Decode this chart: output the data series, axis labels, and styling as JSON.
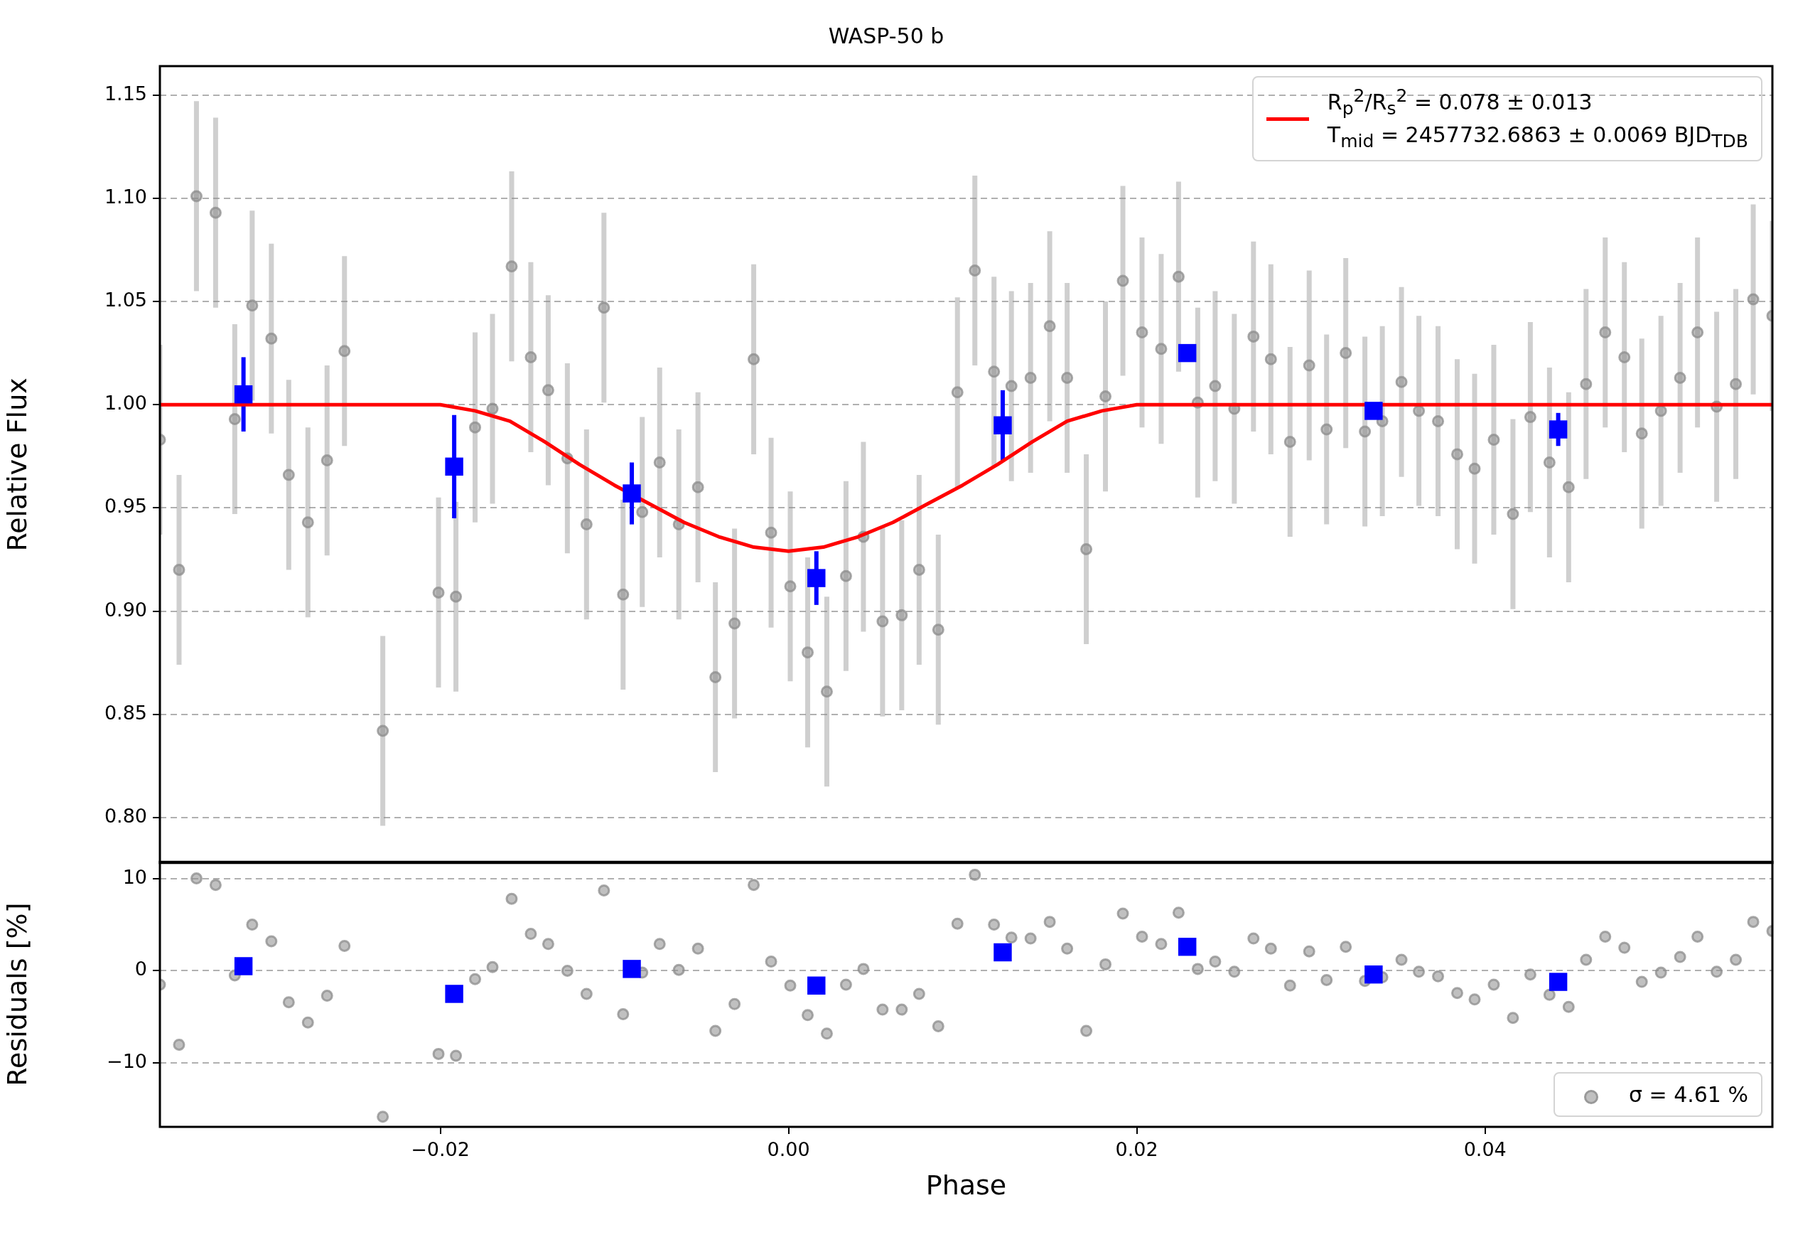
{
  "chart_data": [
    {
      "type": "scatter",
      "title": "WASP-50 b",
      "ylabel": "Relative Flux",
      "xlim": [
        -0.0361,
        0.0565
      ],
      "ylim": [
        0.778,
        1.164
      ],
      "yticks": [
        {
          "value": 0.8,
          "label": "0.80"
        },
        {
          "value": 0.85,
          "label": "0.85"
        },
        {
          "value": 0.9,
          "label": "0.90"
        },
        {
          "value": 0.95,
          "label": "0.95"
        },
        {
          "value": 1.0,
          "label": "1.00"
        },
        {
          "value": 1.05,
          "label": "1.05"
        },
        {
          "value": 1.1,
          "label": "1.10"
        },
        {
          "value": 1.15,
          "label": "1.15"
        }
      ],
      "grid": "y",
      "legend": "top right",
      "tick_labels": "y",
      "series": [
        {
          "marker": "circle",
          "color": "#8c8c8c",
          "x": [
            -0.0361,
            -0.035,
            -0.034,
            -0.0329,
            -0.0318,
            -0.0308,
            -0.0297,
            -0.0287,
            -0.0276,
            -0.0265,
            -0.0255,
            -0.0233,
            -0.0201,
            -0.0191,
            -0.018,
            -0.017,
            -0.0159,
            -0.0148,
            -0.0138,
            -0.0127,
            -0.0116,
            -0.0106,
            -0.0095,
            -0.0084,
            -0.0074,
            -0.0063,
            -0.0052,
            -0.0042,
            -0.0031,
            -0.002,
            -0.001,
            0.0001,
            0.0011,
            0.0022,
            0.0033,
            0.0043,
            0.0054,
            0.0065,
            0.0075,
            0.0086,
            0.0097,
            0.0107,
            0.0118,
            0.0128,
            0.0139,
            0.015,
            0.016,
            0.0171,
            0.0182,
            0.0192,
            0.0203,
            0.0214,
            0.0224,
            0.0235,
            0.0245,
            0.0256,
            0.0267,
            0.0277,
            0.0288,
            0.0299,
            0.0309,
            0.032,
            0.0331,
            0.0341,
            0.0352,
            0.0362,
            0.0373,
            0.0384,
            0.0394,
            0.0405,
            0.0416,
            0.0426,
            0.0437,
            0.0448,
            0.0458,
            0.0469,
            0.048,
            0.049,
            0.0501,
            0.0512,
            0.0522,
            0.0533,
            0.0544,
            0.0554,
            0.0565
          ],
          "values": [
            0.983,
            0.92,
            1.101,
            1.093,
            0.993,
            1.048,
            1.032,
            0.966,
            0.943,
            0.973,
            1.026,
            0.842,
            0.909,
            0.907,
            0.989,
            0.998,
            1.067,
            1.023,
            1.007,
            0.974,
            0.942,
            1.047,
            0.908,
            0.948,
            0.972,
            0.942,
            0.96,
            0.868,
            0.894,
            1.022,
            0.938,
            0.912,
            0.88,
            0.861,
            0.917,
            0.936,
            0.895,
            0.898,
            0.92,
            0.891,
            1.006,
            1.065,
            1.016,
            1.009,
            1.013,
            1.038,
            1.013,
            0.93,
            1.004,
            1.06,
            1.035,
            1.027,
            1.062,
            1.001,
            1.009,
            0.998,
            1.033,
            1.022,
            0.982,
            1.019,
            0.988,
            1.025,
            0.987,
            0.992,
            1.011,
            0.997,
            0.992,
            0.976,
            0.969,
            0.983,
            0.947,
            0.994,
            0.972,
            0.96,
            1.01,
            1.035,
            1.023,
            0.986,
            0.997,
            1.013,
            1.035,
            0.999,
            1.01,
            1.051,
            1.043
          ],
          "errors": [
            0.046,
            0.046,
            0.046,
            0.046,
            0.046,
            0.046,
            0.046,
            0.046,
            0.046,
            0.046,
            0.046,
            0.046,
            0.046,
            0.046,
            0.046,
            0.046,
            0.046,
            0.046,
            0.046,
            0.046,
            0.046,
            0.046,
            0.046,
            0.046,
            0.046,
            0.046,
            0.046,
            0.046,
            0.046,
            0.046,
            0.046,
            0.046,
            0.046,
            0.046,
            0.046,
            0.046,
            0.046,
            0.046,
            0.046,
            0.046,
            0.046,
            0.046,
            0.046,
            0.046,
            0.046,
            0.046,
            0.046,
            0.046,
            0.046,
            0.046,
            0.046,
            0.046,
            0.046,
            0.046,
            0.046,
            0.046,
            0.046,
            0.046,
            0.046,
            0.046,
            0.046,
            0.046,
            0.046,
            0.046,
            0.046,
            0.046,
            0.046,
            0.046,
            0.046,
            0.046,
            0.046,
            0.046,
            0.046,
            0.046,
            0.046,
            0.046,
            0.046,
            0.046,
            0.046,
            0.046,
            0.046,
            0.046,
            0.046,
            0.046,
            0.046
          ]
        },
        {
          "type": "line",
          "marker": "none",
          "line_style": "solid",
          "name": "R$_{p}$$^{2}$/R$_{s}$$^{2}$ = 0.078 ± 0.013\nT$_{mid}$ = 2457732.6863 ± 0.0069 BJD$_{TDB}$",
          "color": "#ff0000",
          "x": [
            -0.0361,
            -0.02,
            -0.018,
            -0.016,
            -0.014,
            -0.012,
            -0.01,
            -0.008,
            -0.006,
            -0.004,
            -0.002,
            0,
            0.002,
            0.004,
            0.006,
            0.008,
            0.01,
            0.012,
            0.014,
            0.016,
            0.018,
            0.02,
            0.0565
          ],
          "values": [
            1,
            1,
            0.997,
            0.992,
            0.982,
            0.971,
            0.961,
            0.952,
            0.943,
            0.936,
            0.931,
            0.929,
            0.931,
            0.936,
            0.943,
            0.952,
            0.961,
            0.971,
            0.982,
            0.992,
            0.997,
            1,
            1
          ]
        },
        {
          "marker": "square",
          "color": "#0000ff",
          "x": [
            -0.0313,
            -0.0192,
            -0.009,
            0.0016,
            0.0123,
            0.0229,
            0.0336,
            0.0442
          ],
          "values": [
            1.005,
            0.97,
            0.957,
            0.916,
            0.99,
            1.025,
            0.997,
            0.988
          ],
          "errors": [
            0.018,
            0.025,
            0.015,
            0.013,
            0.017,
            0.004,
            0.004,
            0.008
          ]
        }
      ]
    },
    {
      "type": "scatter",
      "xlabel": "Phase",
      "ylabel": "Residuals [%]",
      "xlim": [
        -0.0361,
        0.0565
      ],
      "ylim": [
        -16.9,
        11.8
      ],
      "xticks": [
        {
          "value": -0.02,
          "label": "−0.02"
        },
        {
          "value": 0,
          "label": "0.00"
        },
        {
          "value": 0.02,
          "label": "0.02"
        },
        {
          "value": 0.04,
          "label": "0.04"
        }
      ],
      "yticks": [
        {
          "value": -10,
          "label": "−10"
        },
        0,
        10
      ],
      "grid": "y",
      "legend": "bottom right",
      "series": [
        {
          "marker": "circle",
          "name": "σ = 4.61 %",
          "color": "#8c8c8c",
          "x": [
            -0.0361,
            -0.035,
            -0.034,
            -0.0329,
            -0.0318,
            -0.0308,
            -0.0297,
            -0.0287,
            -0.0276,
            -0.0265,
            -0.0255,
            -0.0233,
            -0.0201,
            -0.0191,
            -0.018,
            -0.017,
            -0.0159,
            -0.0148,
            -0.0138,
            -0.0127,
            -0.0116,
            -0.0106,
            -0.0095,
            -0.0084,
            -0.0074,
            -0.0063,
            -0.0052,
            -0.0042,
            -0.0031,
            -0.002,
            -0.001,
            0.0001,
            0.0011,
            0.0022,
            0.0033,
            0.0043,
            0.0054,
            0.0065,
            0.0075,
            0.0086,
            0.0097,
            0.0107,
            0.0118,
            0.0128,
            0.0139,
            0.015,
            0.016,
            0.0171,
            0.0182,
            0.0192,
            0.0203,
            0.0214,
            0.0224,
            0.0235,
            0.0245,
            0.0256,
            0.0267,
            0.0277,
            0.0288,
            0.0299,
            0.0309,
            0.032,
            0.0331,
            0.0341,
            0.0352,
            0.0362,
            0.0373,
            0.0384,
            0.0394,
            0.0405,
            0.0416,
            0.0426,
            0.0437,
            0.0448,
            0.0458,
            0.0469,
            0.048,
            0.049,
            0.0501,
            0.0512,
            0.0522,
            0.0533,
            0.0544,
            0.0554,
            0.0565
          ],
          "values": [
            -1.5,
            -8,
            10,
            9.3,
            -0.5,
            5,
            3.2,
            -3.4,
            -5.6,
            -2.7,
            2.7,
            -15.8,
            -9,
            -9.2,
            -0.9,
            0.4,
            7.8,
            4,
            2.9,
            0,
            -2.5,
            8.7,
            -4.7,
            -0.2,
            2.9,
            0.1,
            2.4,
            -6.5,
            -3.6,
            9.3,
            1,
            -1.6,
            -4.8,
            -6.8,
            -1.5,
            0.2,
            -4.2,
            -4.2,
            -2.5,
            -6,
            5.1,
            10.4,
            5,
            3.6,
            3.5,
            5.3,
            2.4,
            -6.5,
            0.7,
            6.2,
            3.7,
            2.9,
            6.3,
            0.2,
            1,
            -0.1,
            3.5,
            2.4,
            -1.6,
            2.1,
            -1,
            2.6,
            -1.1,
            -0.7,
            1.2,
            -0.1,
            -0.6,
            -2.4,
            -3.1,
            -1.5,
            -5.1,
            -0.4,
            -2.6,
            -3.9,
            1.2,
            3.7,
            2.5,
            -1.2,
            -0.2,
            1.5,
            3.7,
            -0.1,
            1.2,
            5.3,
            4.3
          ]
        },
        {
          "marker": "square",
          "color": "#0000ff",
          "x": [
            -0.0313,
            -0.0192,
            -0.009,
            0.0016,
            0.0123,
            0.0229,
            0.0336,
            0.0442
          ],
          "values": [
            0.5,
            -2.5,
            0.2,
            -1.6,
            2,
            2.6,
            -0.4,
            -1.2
          ]
        }
      ]
    }
  ]
}
